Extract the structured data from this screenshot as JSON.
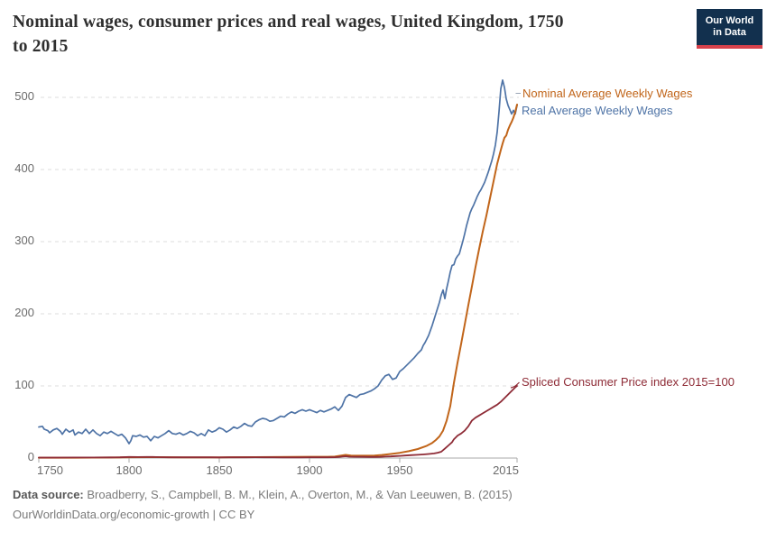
{
  "header": {
    "title_line1": "Nominal wages, consumer prices and real wages, United Kingdom, 1750",
    "title_line2": "to 2015",
    "logo_line1": "Our World",
    "logo_line2": "in Data",
    "logo_bg_color": "#12304e",
    "logo_bar_color": "#d8414b"
  },
  "chart_data": {
    "type": "line",
    "title": "Nominal wages, consumer prices and real wages, United Kingdom, 1750 to 2015",
    "xlabel": "",
    "ylabel": "",
    "xlim": [
      1750,
      2015
    ],
    "ylim": [
      0,
      500
    ],
    "x_ticks": [
      1750,
      1800,
      1850,
      1900,
      1950,
      2015
    ],
    "y_ticks": [
      0,
      100,
      200,
      300,
      400,
      500
    ],
    "grid": "horizontal-dashed",
    "legend_position": "labels-at-line-ends",
    "series": [
      {
        "name": "Nominal Average Weekly Wages",
        "color": "#C1651A",
        "points": [
          [
            1750,
            0.5
          ],
          [
            1770,
            0.55
          ],
          [
            1790,
            0.7
          ],
          [
            1800,
            1.1
          ],
          [
            1810,
            1.3
          ],
          [
            1815,
            1.2
          ],
          [
            1830,
            1.0
          ],
          [
            1850,
            1.0
          ],
          [
            1870,
            1.3
          ],
          [
            1890,
            1.5
          ],
          [
            1900,
            1.7
          ],
          [
            1910,
            1.8
          ],
          [
            1914,
            2.0
          ],
          [
            1918,
            3.6
          ],
          [
            1920,
            4.4
          ],
          [
            1923,
            3.4
          ],
          [
            1930,
            3.2
          ],
          [
            1936,
            3.4
          ],
          [
            1940,
            4.2
          ],
          [
            1945,
            5.6
          ],
          [
            1950,
            7.2
          ],
          [
            1955,
            9.5
          ],
          [
            1960,
            12.5
          ],
          [
            1965,
            17
          ],
          [
            1968,
            21
          ],
          [
            1970,
            25
          ],
          [
            1972,
            30
          ],
          [
            1974,
            38
          ],
          [
            1976,
            52
          ],
          [
            1978,
            72
          ],
          [
            1980,
            104
          ],
          [
            1982,
            132
          ],
          [
            1984,
            158
          ],
          [
            1986,
            185
          ],
          [
            1988,
            212
          ],
          [
            1990,
            238
          ],
          [
            1992,
            265
          ],
          [
            1994,
            290
          ],
          [
            1996,
            314
          ],
          [
            1998,
            336
          ],
          [
            2000,
            360
          ],
          [
            2002,
            384
          ],
          [
            2004,
            408
          ],
          [
            2006,
            427
          ],
          [
            2007,
            436
          ],
          [
            2008,
            444
          ],
          [
            2009,
            447
          ],
          [
            2010,
            455
          ],
          [
            2011,
            461
          ],
          [
            2012,
            466
          ],
          [
            2013,
            472
          ],
          [
            2014,
            480
          ],
          [
            2015,
            490
          ]
        ]
      },
      {
        "name": "Real Average Weekly Wages",
        "color": "#4E73A6",
        "points": [
          [
            1750,
            43
          ],
          [
            1752,
            44
          ],
          [
            1753,
            40
          ],
          [
            1755,
            38
          ],
          [
            1756,
            35
          ],
          [
            1758,
            39
          ],
          [
            1760,
            41
          ],
          [
            1762,
            37
          ],
          [
            1763,
            33
          ],
          [
            1765,
            40
          ],
          [
            1767,
            36
          ],
          [
            1769,
            39
          ],
          [
            1770,
            32
          ],
          [
            1772,
            36
          ],
          [
            1774,
            34
          ],
          [
            1776,
            40
          ],
          [
            1778,
            34
          ],
          [
            1780,
            39
          ],
          [
            1782,
            34
          ],
          [
            1784,
            31
          ],
          [
            1786,
            36
          ],
          [
            1788,
            34
          ],
          [
            1790,
            37
          ],
          [
            1792,
            34
          ],
          [
            1794,
            31
          ],
          [
            1796,
            33
          ],
          [
            1798,
            28
          ],
          [
            1800,
            20
          ],
          [
            1801,
            24
          ],
          [
            1802,
            31
          ],
          [
            1804,
            30
          ],
          [
            1806,
            32
          ],
          [
            1808,
            29
          ],
          [
            1810,
            30
          ],
          [
            1812,
            24
          ],
          [
            1814,
            30
          ],
          [
            1816,
            28
          ],
          [
            1818,
            31
          ],
          [
            1820,
            34
          ],
          [
            1822,
            38
          ],
          [
            1824,
            34
          ],
          [
            1826,
            33
          ],
          [
            1828,
            35
          ],
          [
            1830,
            32
          ],
          [
            1832,
            34
          ],
          [
            1834,
            37
          ],
          [
            1836,
            35
          ],
          [
            1838,
            31
          ],
          [
            1840,
            34
          ],
          [
            1842,
            31
          ],
          [
            1844,
            39
          ],
          [
            1846,
            36
          ],
          [
            1848,
            38
          ],
          [
            1850,
            42
          ],
          [
            1852,
            40
          ],
          [
            1854,
            36
          ],
          [
            1856,
            39
          ],
          [
            1858,
            43
          ],
          [
            1860,
            41
          ],
          [
            1862,
            44
          ],
          [
            1864,
            48
          ],
          [
            1866,
            45
          ],
          [
            1868,
            44
          ],
          [
            1870,
            50
          ],
          [
            1872,
            53
          ],
          [
            1874,
            55
          ],
          [
            1876,
            54
          ],
          [
            1878,
            51
          ],
          [
            1880,
            52
          ],
          [
            1882,
            55
          ],
          [
            1884,
            58
          ],
          [
            1886,
            57
          ],
          [
            1888,
            61
          ],
          [
            1890,
            64
          ],
          [
            1892,
            62
          ],
          [
            1894,
            65
          ],
          [
            1896,
            67
          ],
          [
            1898,
            65
          ],
          [
            1900,
            67
          ],
          [
            1902,
            65
          ],
          [
            1904,
            63
          ],
          [
            1906,
            66
          ],
          [
            1908,
            64
          ],
          [
            1910,
            66
          ],
          [
            1912,
            68
          ],
          [
            1914,
            71
          ],
          [
            1916,
            66
          ],
          [
            1918,
            72
          ],
          [
            1920,
            84
          ],
          [
            1922,
            88
          ],
          [
            1924,
            86
          ],
          [
            1926,
            84
          ],
          [
            1928,
            88
          ],
          [
            1930,
            89
          ],
          [
            1932,
            91
          ],
          [
            1934,
            93
          ],
          [
            1936,
            96
          ],
          [
            1938,
            100
          ],
          [
            1940,
            108
          ],
          [
            1942,
            114
          ],
          [
            1944,
            116
          ],
          [
            1946,
            109
          ],
          [
            1948,
            111
          ],
          [
            1950,
            120
          ],
          [
            1952,
            124
          ],
          [
            1954,
            129
          ],
          [
            1956,
            134
          ],
          [
            1958,
            139
          ],
          [
            1960,
            145
          ],
          [
            1962,
            150
          ],
          [
            1963,
            156
          ],
          [
            1964,
            160
          ],
          [
            1966,
            170
          ],
          [
            1968,
            184
          ],
          [
            1970,
            200
          ],
          [
            1972,
            216
          ],
          [
            1973,
            226
          ],
          [
            1974,
            233
          ],
          [
            1975,
            221
          ],
          [
            1976,
            235
          ],
          [
            1977,
            246
          ],
          [
            1978,
            258
          ],
          [
            1979,
            267
          ],
          [
            1980,
            268
          ],
          [
            1981,
            276
          ],
          [
            1982,
            280
          ],
          [
            1983,
            283
          ],
          [
            1984,
            292
          ],
          [
            1985,
            301
          ],
          [
            1986,
            311
          ],
          [
            1987,
            322
          ],
          [
            1988,
            331
          ],
          [
            1989,
            340
          ],
          [
            1990,
            346
          ],
          [
            1991,
            351
          ],
          [
            1992,
            357
          ],
          [
            1993,
            363
          ],
          [
            1994,
            368
          ],
          [
            1995,
            372
          ],
          [
            1996,
            377
          ],
          [
            1997,
            382
          ],
          [
            1998,
            389
          ],
          [
            1999,
            396
          ],
          [
            2000,
            404
          ],
          [
            2001,
            412
          ],
          [
            2002,
            422
          ],
          [
            2003,
            434
          ],
          [
            2004,
            452
          ],
          [
            2005,
            480
          ],
          [
            2006,
            512
          ],
          [
            2007,
            524
          ],
          [
            2008,
            514
          ],
          [
            2009,
            498
          ],
          [
            2010,
            489
          ],
          [
            2011,
            483
          ],
          [
            2012,
            477
          ],
          [
            2013,
            482
          ],
          [
            2014,
            477
          ],
          [
            2015,
            489
          ]
        ]
      },
      {
        "name": "Spliced Consumer Price index 2015=100",
        "color": "#8E2B36",
        "points": [
          [
            1750,
            0.6
          ],
          [
            1760,
            0.6
          ],
          [
            1770,
            0.7
          ],
          [
            1780,
            0.75
          ],
          [
            1790,
            0.85
          ],
          [
            1795,
            1.0
          ],
          [
            1800,
            1.45
          ],
          [
            1805,
            1.35
          ],
          [
            1810,
            1.5
          ],
          [
            1813,
            1.55
          ],
          [
            1817,
            1.25
          ],
          [
            1822,
            1.05
          ],
          [
            1830,
            1.0
          ],
          [
            1835,
            0.95
          ],
          [
            1840,
            1.05
          ],
          [
            1845,
            0.95
          ],
          [
            1850,
            0.9
          ],
          [
            1855,
            1.05
          ],
          [
            1860,
            1.0
          ],
          [
            1865,
            1.0
          ],
          [
            1870,
            1.1
          ],
          [
            1875,
            1.05
          ],
          [
            1880,
            1.0
          ],
          [
            1885,
            0.9
          ],
          [
            1890,
            0.9
          ],
          [
            1895,
            0.85
          ],
          [
            1900,
            0.95
          ],
          [
            1905,
            0.95
          ],
          [
            1910,
            1.0
          ],
          [
            1914,
            1.1
          ],
          [
            1916,
            1.5
          ],
          [
            1918,
            2.0
          ],
          [
            1920,
            2.5
          ],
          [
            1922,
            1.9
          ],
          [
            1925,
            1.75
          ],
          [
            1930,
            1.6
          ],
          [
            1933,
            1.45
          ],
          [
            1936,
            1.5
          ],
          [
            1939,
            1.6
          ],
          [
            1942,
            2.0
          ],
          [
            1945,
            2.3
          ],
          [
            1948,
            2.7
          ],
          [
            1950,
            3.0
          ],
          [
            1953,
            3.5
          ],
          [
            1956,
            4.0
          ],
          [
            1960,
            4.5
          ],
          [
            1963,
            5.0
          ],
          [
            1966,
            5.6
          ],
          [
            1969,
            6.4
          ],
          [
            1971,
            7.4
          ],
          [
            1973,
            8.8
          ],
          [
            1975,
            13
          ],
          [
            1977,
            17.5
          ],
          [
            1979,
            22
          ],
          [
            1980,
            26
          ],
          [
            1982,
            31
          ],
          [
            1984,
            34
          ],
          [
            1986,
            38
          ],
          [
            1988,
            44
          ],
          [
            1990,
            52
          ],
          [
            1992,
            56
          ],
          [
            1994,
            59
          ],
          [
            1996,
            62
          ],
          [
            1998,
            65
          ],
          [
            2000,
            68
          ],
          [
            2002,
            71
          ],
          [
            2004,
            74
          ],
          [
            2006,
            78
          ],
          [
            2008,
            83
          ],
          [
            2010,
            88
          ],
          [
            2012,
            93
          ],
          [
            2014,
            98
          ],
          [
            2015,
            100
          ]
        ]
      }
    ]
  },
  "footer": {
    "source_label": "Data source:",
    "source_text": "Broadberry, S., Campbell, B. M., Klein, A., Overton, M., & Van Leeuwen, B. (2015)",
    "link_line": "OurWorldinData.org/economic-growth | CC BY"
  }
}
